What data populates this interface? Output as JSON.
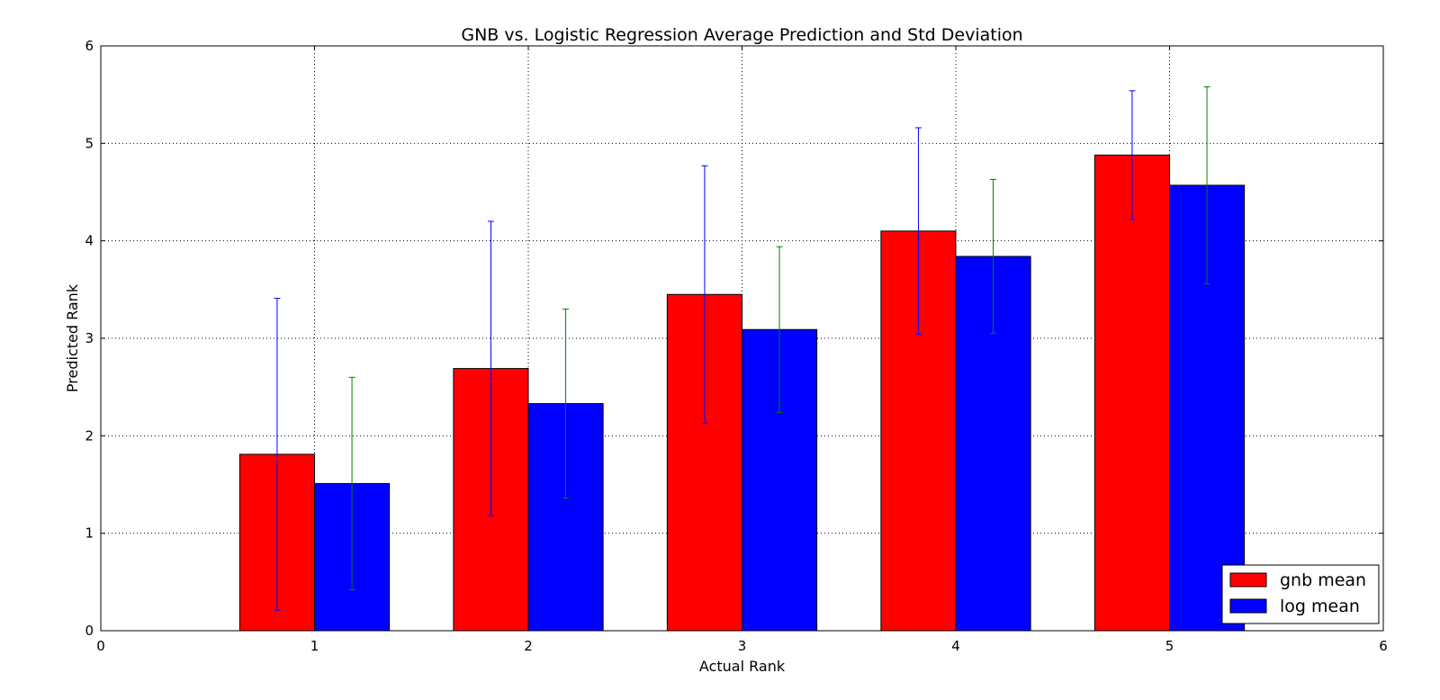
{
  "chart_data": {
    "type": "bar",
    "title": "GNB vs. Logistic Regression Average Prediction and Std Deviation",
    "xlabel": "Actual Rank",
    "ylabel": "Predicted Rank",
    "xlim": [
      0,
      6
    ],
    "ylim": [
      0,
      6
    ],
    "x_ticks": [
      "0",
      "1",
      "2",
      "3",
      "4",
      "5",
      "6"
    ],
    "y_ticks": [
      "0",
      "1",
      "2",
      "3",
      "4",
      "5",
      "6"
    ],
    "grid": true,
    "legend_position": "bottom-right",
    "categories": [
      1,
      2,
      3,
      4,
      5
    ],
    "bar_width": 0.35,
    "series": [
      {
        "name": "gnb mean",
        "color": "#ff0000",
        "error_color": "#0000ff",
        "offset": -0.35,
        "values": [
          1.81,
          2.69,
          3.45,
          4.1,
          4.88
        ],
        "errors": [
          1.6,
          1.51,
          1.32,
          1.06,
          0.66
        ]
      },
      {
        "name": "log mean",
        "color": "#0000ff",
        "error_color": "#008000",
        "offset": 0,
        "values": [
          1.51,
          2.33,
          3.09,
          3.84,
          4.57
        ],
        "errors": [
          1.09,
          0.97,
          0.85,
          0.79,
          1.01
        ]
      }
    ]
  }
}
